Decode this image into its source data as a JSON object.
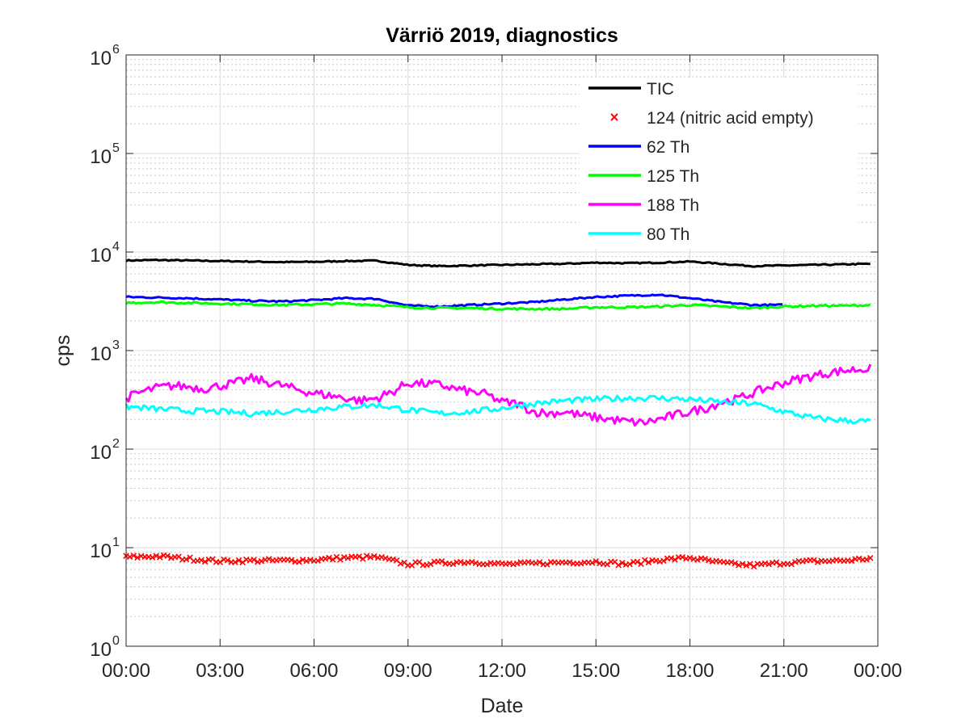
{
  "chart_data": {
    "type": "line",
    "title": "Värriö 2019, diagnostics",
    "xlabel": "Date",
    "ylabel": "cps",
    "yscale": "log",
    "ylim": [
      1,
      1000000
    ],
    "xlim": [
      "00:00",
      "24:00"
    ],
    "x_ticks": [
      "00:00",
      "03:00",
      "06:00",
      "09:00",
      "12:00",
      "15:00",
      "18:00",
      "21:00",
      "00:00"
    ],
    "y_ticks": [
      {
        "base": "10",
        "exp": "0"
      },
      {
        "base": "10",
        "exp": "1"
      },
      {
        "base": "10",
        "exp": "2"
      },
      {
        "base": "10",
        "exp": "3"
      },
      {
        "base": "10",
        "exp": "4"
      },
      {
        "base": "10",
        "exp": "5"
      },
      {
        "base": "10",
        "exp": "6"
      }
    ],
    "grid": true,
    "minor_grid": true,
    "legend_position": "top-right",
    "series": [
      {
        "name": "TIC",
        "color": "#000000",
        "style": "line",
        "x_hours": [
          0,
          1,
          2,
          3,
          4,
          5,
          6,
          7,
          8,
          9,
          10,
          11,
          12,
          13,
          14,
          15,
          16,
          17,
          18,
          19,
          20,
          21,
          22,
          23,
          23.8
        ],
        "values": [
          8200,
          8300,
          8200,
          8100,
          8000,
          7900,
          7950,
          8100,
          8150,
          7400,
          7200,
          7300,
          7400,
          7500,
          7600,
          7800,
          7700,
          7800,
          8000,
          7600,
          7200,
          7300,
          7400,
          7500,
          7600
        ]
      },
      {
        "name": "124 (nitric acid empty)",
        "color": "#ff0000",
        "style": "marker",
        "x_hours": [
          0,
          1,
          2,
          3,
          4,
          5,
          6,
          7,
          8,
          9,
          10,
          11,
          12,
          13,
          14,
          15,
          16,
          17,
          18,
          19,
          20,
          21,
          22,
          23,
          23.8
        ],
        "values": [
          8.0,
          8.2,
          7.7,
          7.3,
          7.4,
          7.4,
          7.5,
          7.9,
          8.0,
          6.8,
          7.0,
          7.2,
          6.8,
          6.9,
          7.1,
          7.2,
          6.8,
          7.5,
          7.9,
          7.0,
          6.6,
          7.0,
          7.3,
          7.4,
          7.8
        ]
      },
      {
        "name": "62 Th",
        "color": "#0000ff",
        "style": "line",
        "x_hours": [
          0,
          1,
          2,
          3,
          4,
          5,
          6,
          7,
          8,
          9,
          10,
          11,
          12,
          13,
          14,
          15,
          16,
          17,
          18,
          19,
          20,
          21
        ],
        "values": [
          3500,
          3450,
          3400,
          3300,
          3200,
          3150,
          3250,
          3400,
          3350,
          2850,
          2800,
          2900,
          3000,
          3100,
          3300,
          3500,
          3600,
          3700,
          3400,
          3100,
          2900,
          2900
        ]
      },
      {
        "name": "125 Th",
        "color": "#00ff00",
        "style": "line",
        "x_hours": [
          0,
          1,
          2,
          3,
          4,
          5,
          6,
          7,
          8,
          9,
          10,
          11,
          12,
          13,
          14,
          15,
          16,
          17,
          18,
          19,
          20,
          21,
          22,
          23,
          23.8
        ],
        "values": [
          3050,
          3100,
          3050,
          3000,
          2950,
          2900,
          2950,
          3000,
          2900,
          2750,
          2700,
          2700,
          2650,
          2650,
          2650,
          2750,
          2750,
          2800,
          2900,
          2800,
          2700,
          2800,
          2850,
          2850,
          2900
        ]
      },
      {
        "name": "188 Th",
        "color": "#ff00ff",
        "style": "line",
        "x_hours": [
          0,
          0.5,
          1,
          1.5,
          2,
          2.5,
          3,
          3.5,
          4,
          4.5,
          5,
          5.5,
          6,
          6.5,
          7,
          7.5,
          8,
          8.5,
          9,
          9.5,
          10,
          10.5,
          11,
          11.5,
          12,
          12.5,
          13,
          13.5,
          14,
          14.5,
          15,
          15.5,
          16,
          16.5,
          17,
          17.5,
          18,
          18.5,
          19,
          19.5,
          20,
          20.5,
          21,
          21.5,
          22,
          22.5,
          23,
          23.5,
          23.8
        ],
        "values": [
          330,
          380,
          420,
          440,
          430,
          410,
          440,
          470,
          520,
          480,
          440,
          400,
          370,
          350,
          330,
          310,
          330,
          380,
          470,
          460,
          450,
          410,
          380,
          360,
          300,
          290,
          240,
          230,
          240,
          220,
          210,
          200,
          190,
          185,
          200,
          220,
          240,
          260,
          300,
          320,
          370,
          420,
          470,
          520,
          560,
          600,
          630,
          650,
          660
        ]
      },
      {
        "name": "80 Th",
        "color": "#00ffff",
        "style": "line",
        "x_hours": [
          0,
          1,
          2,
          3,
          4,
          5,
          6,
          7,
          8,
          9,
          10,
          11,
          12,
          13,
          14,
          15,
          16,
          17,
          18,
          19,
          20,
          21,
          22,
          23,
          23.8
        ],
        "values": [
          270,
          255,
          245,
          240,
          230,
          240,
          255,
          270,
          280,
          250,
          230,
          240,
          260,
          290,
          310,
          320,
          330,
          330,
          320,
          300,
          290,
          240,
          205,
          195,
          190
        ]
      }
    ]
  }
}
